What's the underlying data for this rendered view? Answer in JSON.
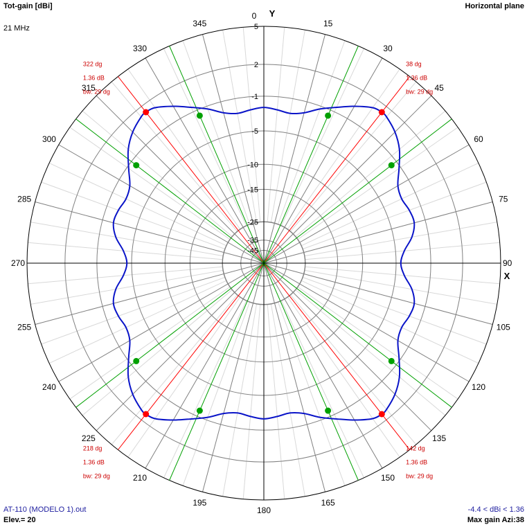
{
  "header": {
    "title": "Tot-gain [dBi]",
    "frequency": "21 MHz",
    "plane": "Horizontal plane"
  },
  "footer": {
    "filename": "AT-110 (MODELO 1).out",
    "elevation": "Elev.= 20",
    "range": "-4.4 < dBi < 1.36",
    "max_gain": "Max gain Azi:38"
  },
  "colors": {
    "pattern": "#0a14c8",
    "max_marker": "#ff0000",
    "beamwidth_marker": "#00a000",
    "grid": "#b0b0b0",
    "axis": "#000000",
    "annotation": "#cc0000",
    "footer_text": "#2020a0"
  },
  "chart_data": {
    "type": "polar",
    "axis_labels": {
      "y": "Y",
      "x": "X"
    },
    "angle_ticks": [
      "0",
      "15",
      "30",
      "45",
      "60",
      "75",
      "90",
      "105",
      "120",
      "135",
      "150",
      "165",
      "180",
      "195",
      "210",
      "225",
      "240",
      "255",
      "270",
      "285",
      "300",
      "315",
      "330",
      "345"
    ],
    "gain_ring_labels": [
      "5",
      "2",
      "-1",
      "-5",
      "-10",
      "-15",
      "-25",
      "-35",
      "-45"
    ],
    "gain_ring_values": [
      5,
      2,
      -1,
      -5,
      -10,
      -15,
      -25,
      -35,
      -45
    ],
    "radial_scale": "log",
    "max_gain_dbi": 1.36,
    "min_gain_dbi": -4.4,
    "pattern": {
      "name": "Tot-gain",
      "azimuth_deg": [
        0,
        5,
        10,
        15,
        20,
        25,
        30,
        35,
        38,
        40,
        45,
        50,
        55,
        60,
        65,
        70,
        75,
        80,
        85,
        90,
        95,
        100,
        105,
        110,
        115,
        120,
        125,
        130,
        135,
        140,
        142,
        145,
        150,
        155,
        160,
        165,
        170,
        175,
        180,
        185,
        190,
        195,
        200,
        205,
        210,
        215,
        218,
        220,
        225,
        230,
        235,
        240,
        245,
        250,
        255,
        260,
        265,
        270,
        275,
        280,
        285,
        290,
        295,
        300,
        305,
        310,
        315,
        320,
        322,
        325,
        330,
        335,
        340,
        345,
        350,
        355
      ],
      "gain_dbi": [
        -2.2,
        -2.4,
        -2.6,
        -2.2,
        -1.3,
        -0.5,
        0.4,
        1.2,
        1.36,
        1.3,
        0.8,
        0.0,
        -1.2,
        -2.3,
        -2.6,
        -2.3,
        -2.2,
        -2.8,
        -3.9,
        -4.4,
        -3.9,
        -2.8,
        -2.2,
        -2.3,
        -2.6,
        -2.3,
        -1.2,
        0.0,
        0.8,
        1.3,
        1.36,
        1.2,
        0.4,
        -0.5,
        -1.3,
        -2.2,
        -2.6,
        -2.4,
        -2.2,
        -2.4,
        -2.6,
        -2.2,
        -1.3,
        -0.5,
        0.4,
        1.2,
        1.36,
        1.3,
        0.8,
        0.0,
        -1.2,
        -2.3,
        -2.6,
        -2.3,
        -2.2,
        -2.8,
        -3.9,
        -4.4,
        -3.9,
        -2.8,
        -2.2,
        -2.3,
        -2.6,
        -2.3,
        -1.2,
        0.0,
        0.8,
        1.3,
        1.36,
        1.2,
        0.4,
        -0.5,
        -1.3,
        -2.2,
        -2.6,
        -2.4
      ]
    },
    "max_markers": [
      {
        "azimuth": 38,
        "gain": 1.36,
        "label": "38 dg",
        "gain_label": "1.36 dB",
        "bw_label": "bw: 29 dg"
      },
      {
        "azimuth": 142,
        "gain": 1.36,
        "label": "142 dg",
        "gain_label": "1.36 dB",
        "bw_label": "bw: 29 dg"
      },
      {
        "azimuth": 218,
        "gain": 1.36,
        "label": "218 dg",
        "gain_label": "1.36 dB",
        "bw_label": "bw: 29 dg"
      },
      {
        "azimuth": 322,
        "gain": 1.36,
        "label": "322 dg",
        "gain_label": "1.36 dB",
        "bw_label": "bw: 29 dg"
      }
    ],
    "beamwidth_markers": [
      {
        "azimuth": 23.5,
        "gain": -1.64
      },
      {
        "azimuth": 52.5,
        "gain": -1.64
      },
      {
        "azimuth": 127.5,
        "gain": -1.64
      },
      {
        "azimuth": 156.5,
        "gain": -1.64
      },
      {
        "azimuth": 203.5,
        "gain": -1.64
      },
      {
        "azimuth": 232.5,
        "gain": -1.64
      },
      {
        "azimuth": 307.5,
        "gain": -1.64
      },
      {
        "azimuth": 336.5,
        "gain": -1.64
      }
    ]
  }
}
